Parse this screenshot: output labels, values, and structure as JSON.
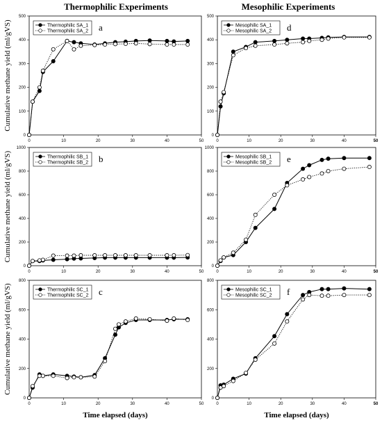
{
  "column_titles": [
    "Thermophilic Experiments",
    "Mesophilic Experiments"
  ],
  "chart_data": [
    {
      "type": "line",
      "panel": "a",
      "ylabel": "Cumulative methane yield (ml/gVS)",
      "xlabel": "",
      "xlim": [
        0,
        50
      ],
      "ylim": [
        0,
        500
      ],
      "xticks": [
        "0",
        "10",
        "20",
        "30",
        "40",
        "50"
      ],
      "yticks": [
        "0",
        "100",
        "200",
        "300",
        "400",
        "500"
      ],
      "grid": false,
      "legend": "top-left",
      "series": [
        {
          "name": "Thermophilic SA_1",
          "marker": "filled",
          "line": "solid",
          "x": [
            0,
            1,
            3,
            4,
            7,
            11,
            13,
            15,
            19,
            22,
            25,
            28,
            31,
            35,
            40,
            42,
            46
          ],
          "y": [
            0,
            140,
            185,
            265,
            310,
            395,
            390,
            385,
            380,
            385,
            390,
            392,
            395,
            397,
            395,
            393,
            395
          ]
        },
        {
          "name": "Thermophilic SA_2",
          "marker": "open",
          "line": "dotted",
          "x": [
            0,
            1,
            3,
            4,
            7,
            11,
            13,
            15,
            19,
            22,
            25,
            28,
            31,
            35,
            40,
            42,
            46
          ],
          "y": [
            0,
            140,
            200,
            270,
            360,
            395,
            360,
            375,
            378,
            380,
            382,
            383,
            385,
            382,
            380,
            380,
            380
          ]
        }
      ]
    },
    {
      "type": "line",
      "panel": "d",
      "ylabel": "",
      "xlabel": "",
      "xlim": [
        0,
        50
      ],
      "ylim": [
        0,
        500
      ],
      "xticks": [
        "0",
        "10",
        "20",
        "30",
        "40",
        "50"
      ],
      "yticks": [
        "0",
        "100",
        "200",
        "300",
        "400",
        "500"
      ],
      "grid": false,
      "legend": "top-left",
      "series": [
        {
          "name": "Mesophilic SA_1",
          "marker": "filled",
          "line": "solid",
          "x": [
            0,
            1,
            2,
            5,
            9,
            12,
            18,
            22,
            27,
            29,
            33,
            35,
            40,
            48
          ],
          "y": [
            0,
            120,
            175,
            350,
            370,
            390,
            395,
            400,
            405,
            405,
            408,
            410,
            412,
            412
          ]
        },
        {
          "name": "Mesophilic SA_2",
          "marker": "open",
          "line": "dotted",
          "x": [
            0,
            1,
            2,
            5,
            9,
            12,
            18,
            22,
            27,
            29,
            33,
            35,
            40,
            48
          ],
          "y": [
            0,
            140,
            180,
            335,
            365,
            375,
            380,
            385,
            390,
            395,
            400,
            405,
            410,
            410
          ]
        }
      ]
    },
    {
      "type": "line",
      "panel": "b",
      "ylabel": "Cumulative methane yield (ml/gVS)",
      "xlabel": "",
      "xlim": [
        0,
        50
      ],
      "ylim": [
        0,
        1000
      ],
      "xticks": [
        "0",
        "10",
        "20",
        "30",
        "40",
        "50"
      ],
      "yticks": [
        "0",
        "200",
        "400",
        "600",
        "800",
        "1000"
      ],
      "grid": false,
      "legend": "top-left",
      "series": [
        {
          "name": "Thermophilic SB_1",
          "marker": "filled",
          "line": "solid",
          "x": [
            0,
            1,
            3,
            4,
            7,
            11,
            13,
            15,
            19,
            22,
            25,
            28,
            31,
            35,
            40,
            42,
            46
          ],
          "y": [
            0,
            40,
            40,
            45,
            50,
            55,
            60,
            62,
            65,
            68,
            68,
            68,
            68,
            68,
            68,
            68,
            70
          ]
        },
        {
          "name": "Thermophilic SB_2",
          "marker": "open",
          "line": "dotted",
          "x": [
            0,
            1,
            3,
            4,
            7,
            11,
            13,
            15,
            19,
            22,
            25,
            28,
            31,
            35,
            40,
            42,
            46
          ],
          "y": [
            0,
            40,
            45,
            50,
            85,
            85,
            85,
            88,
            88,
            88,
            88,
            88,
            88,
            88,
            88,
            88,
            90
          ]
        }
      ]
    },
    {
      "type": "line",
      "panel": "e",
      "ylabel": "",
      "xlabel": "",
      "xlim": [
        0,
        50
      ],
      "ylim": [
        0,
        1000
      ],
      "xticks": [
        "0",
        "10",
        "20",
        "30",
        "40",
        "50"
      ],
      "yticks": [
        "0",
        "200",
        "400",
        "600",
        "800",
        "1000"
      ],
      "grid": false,
      "legend": "top-left",
      "series": [
        {
          "name": "Mesophilic SB_1",
          "marker": "filled",
          "line": "solid",
          "x": [
            0,
            1,
            2,
            5,
            9,
            12,
            18,
            22,
            27,
            29,
            33,
            35,
            40,
            48
          ],
          "y": [
            0,
            40,
            70,
            90,
            200,
            320,
            480,
            700,
            820,
            850,
            895,
            905,
            910,
            910
          ]
        },
        {
          "name": "Mesophilic SB_2",
          "marker": "open",
          "line": "dotted",
          "x": [
            0,
            1,
            2,
            5,
            9,
            12,
            18,
            22,
            27,
            29,
            33,
            35,
            40,
            48
          ],
          "y": [
            0,
            45,
            70,
            110,
            220,
            430,
            600,
            680,
            730,
            750,
            780,
            800,
            820,
            835
          ]
        }
      ]
    },
    {
      "type": "line",
      "panel": "c",
      "ylabel": "Cumulative methane yield (ml/gVS)",
      "xlabel": "Time elapsed (days)",
      "xlim": [
        0,
        50
      ],
      "ylim": [
        0,
        800
      ],
      "xticks": [
        "0",
        "10",
        "20",
        "30",
        "40",
        "50"
      ],
      "yticks": [
        "0",
        "200",
        "400",
        "600",
        "800"
      ],
      "grid": false,
      "legend": "top-left",
      "series": [
        {
          "name": "Thermophilic SC_1",
          "marker": "filled",
          "line": "solid",
          "x": [
            0,
            1,
            3,
            4,
            7,
            11,
            13,
            15,
            19,
            22,
            25,
            26,
            28,
            31,
            35,
            40,
            42,
            46
          ],
          "y": [
            0,
            70,
            160,
            150,
            160,
            150,
            145,
            140,
            155,
            270,
            430,
            480,
            510,
            530,
            530,
            530,
            535,
            535
          ]
        },
        {
          "name": "Thermophilic SC_2",
          "marker": "open",
          "line": "dotted",
          "x": [
            0,
            1,
            3,
            4,
            7,
            11,
            13,
            15,
            19,
            22,
            25,
            26,
            28,
            31,
            35,
            40,
            42,
            46
          ],
          "y": [
            0,
            80,
            150,
            150,
            150,
            135,
            140,
            140,
            145,
            250,
            470,
            500,
            520,
            540,
            535,
            525,
            540,
            530
          ]
        }
      ]
    },
    {
      "type": "line",
      "panel": "f",
      "ylabel": "",
      "xlabel": "Time elapsed (days)",
      "xlim": [
        0,
        50
      ],
      "ylim": [
        0,
        800
      ],
      "xticks": [
        "0",
        "10",
        "20",
        "30",
        "40",
        "50"
      ],
      "yticks": [
        "0",
        "200",
        "400",
        "600",
        "800"
      ],
      "grid": false,
      "legend": "top-left",
      "series": [
        {
          "name": "Mesophilic SC_1",
          "marker": "filled",
          "line": "solid",
          "x": [
            0,
            1,
            2,
            5,
            9,
            12,
            18,
            22,
            27,
            29,
            33,
            35,
            40,
            48
          ],
          "y": [
            0,
            85,
            90,
            130,
            165,
            270,
            420,
            570,
            700,
            720,
            740,
            740,
            745,
            740
          ]
        },
        {
          "name": "Mesophilic SC_2",
          "marker": "open",
          "line": "dotted",
          "x": [
            0,
            1,
            2,
            5,
            9,
            12,
            18,
            22,
            27,
            29,
            33,
            35,
            40,
            48
          ],
          "y": [
            0,
            70,
            80,
            115,
            170,
            260,
            370,
            520,
            670,
            700,
            695,
            695,
            700,
            700
          ]
        }
      ]
    }
  ]
}
